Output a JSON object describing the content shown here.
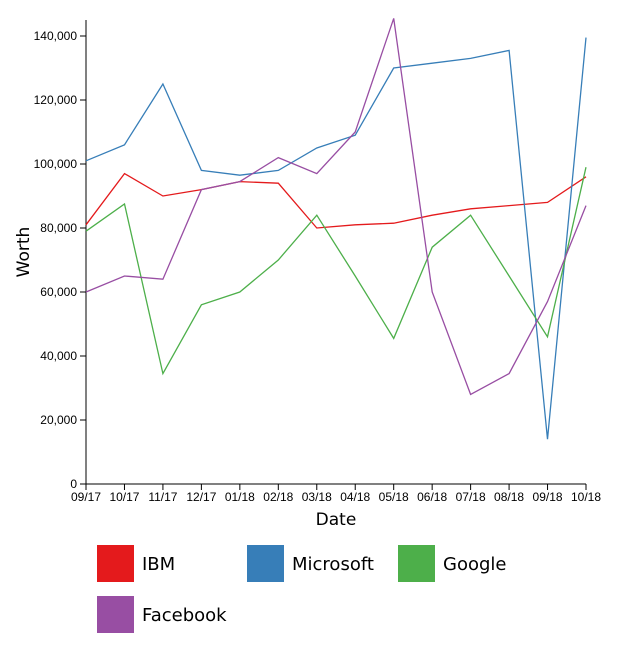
{
  "chart_data": {
    "type": "line",
    "xlabel": "Date",
    "ylabel": "Worth",
    "ylim": [
      0,
      145000
    ],
    "yticks": [
      0,
      20000,
      40000,
      60000,
      80000,
      100000,
      120000,
      140000
    ],
    "ytick_labels": [
      "0",
      "20,000",
      "40,000",
      "60,000",
      "80,000",
      "100,000",
      "120,000",
      "140,000"
    ],
    "categories": [
      "09/17",
      "10/17",
      "11/17",
      "12/17",
      "01/18",
      "02/18",
      "03/18",
      "04/18",
      "05/18",
      "06/18",
      "07/18",
      "08/18",
      "09/18",
      "10/18"
    ],
    "grid": false,
    "legend_position": "bottom",
    "series": [
      {
        "name": "IBM",
        "color": "#e41a1c",
        "values": [
          81000,
          97000,
          90000,
          92000,
          94500,
          94000,
          80000,
          81000,
          81500,
          84000,
          86000,
          87000,
          88000,
          96000
        ]
      },
      {
        "name": "Microsoft",
        "color": "#377eb8",
        "values": [
          101000,
          106000,
          125000,
          98000,
          96500,
          98000,
          105000,
          109000,
          130000,
          131500,
          133000,
          135500,
          14000,
          139500
        ]
      },
      {
        "name": "Google",
        "color": "#4daf4a",
        "values": [
          79000,
          87500,
          34500,
          56000,
          60000,
          70000,
          84000,
          65000,
          45500,
          74000,
          84000,
          65000,
          46000,
          99000
        ]
      },
      {
        "name": "Facebook",
        "color": "#984ea3",
        "values": [
          60000,
          65000,
          64000,
          92000,
          94500,
          102000,
          97000,
          110000,
          145500,
          60000,
          28000,
          34500,
          57000,
          87000
        ]
      }
    ]
  }
}
